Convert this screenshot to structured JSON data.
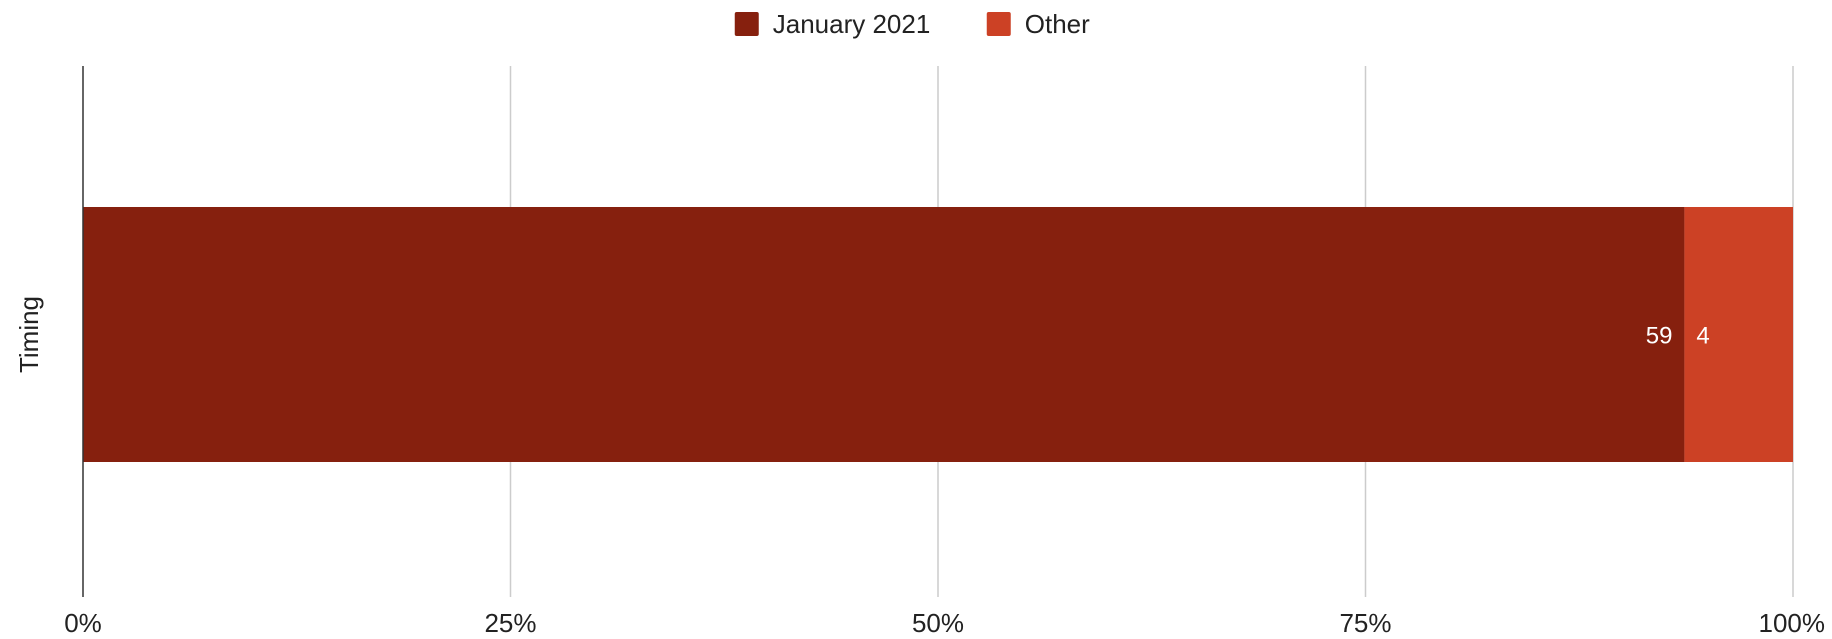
{
  "chart_data": {
    "type": "bar",
    "orientation": "horizontal",
    "stacking": "percent",
    "categories": [
      "Timing"
    ],
    "series": [
      {
        "name": "January 2021",
        "values": [
          59
        ],
        "color": "#86200e"
      },
      {
        "name": "Other",
        "values": [
          4
        ],
        "color": "#cc4125"
      }
    ],
    "xlim": [
      0,
      100
    ],
    "x_ticks": [
      "0%",
      "25%",
      "50%",
      "75%",
      "100%"
    ],
    "ylabel": "Timing",
    "legend_position": "top-center",
    "grid": true
  }
}
